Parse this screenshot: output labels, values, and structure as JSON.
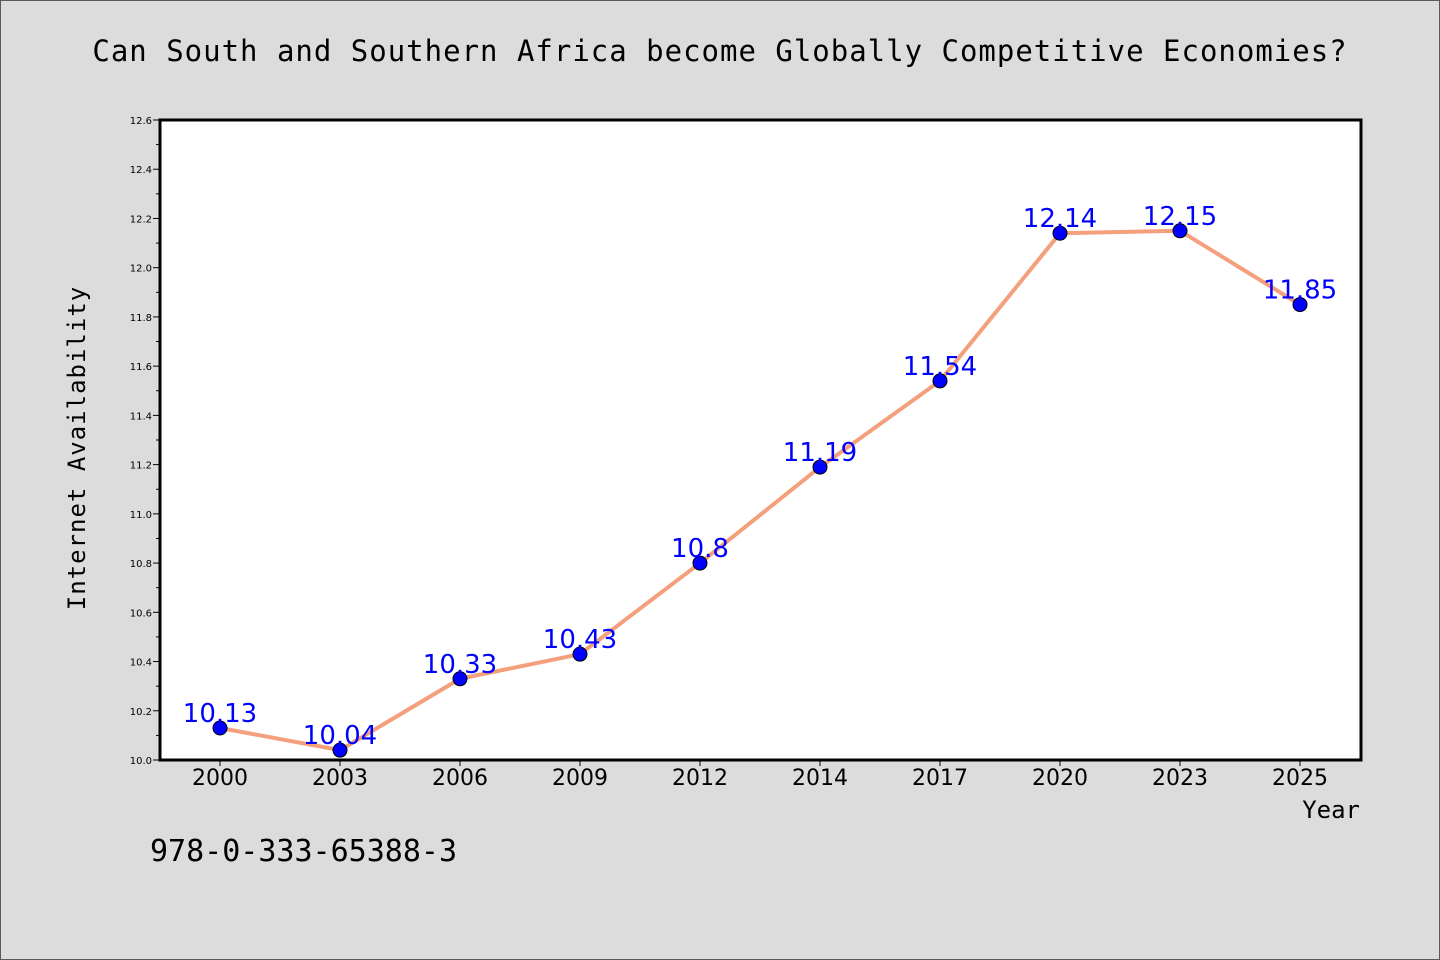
{
  "chart_data": {
    "type": "line",
    "title": "Can South and Southern Africa become Globally Competitive Economies?",
    "xlabel": "Year",
    "ylabel": "Internet Availability",
    "categories": [
      "2000",
      "2003",
      "2006",
      "2009",
      "2012",
      "2014",
      "2017",
      "2020",
      "2023",
      "2025"
    ],
    "values": [
      10.13,
      10.04,
      10.33,
      10.43,
      10.8,
      11.19,
      11.54,
      12.14,
      12.15,
      11.85
    ],
    "data_labels": [
      "10.13",
      "10.04",
      "10.33",
      "10.43",
      "10.8",
      "11.19",
      "11.54",
      "12.14",
      "12.15",
      "11.85"
    ],
    "ylim": [
      10.0,
      12.6
    ],
    "yticks": [
      "10.0",
      "10.2",
      "10.4",
      "10.6",
      "10.8",
      "11.0",
      "11.2",
      "11.4",
      "11.6",
      "11.8",
      "12.0",
      "12.2",
      "12.4",
      "12.6"
    ],
    "grid": false,
    "line_color": "#f4a07c",
    "marker_color": "#0000ff",
    "label_color": "#0000ff"
  },
  "footer": {
    "isbn": "978-0-333-65388-3"
  }
}
